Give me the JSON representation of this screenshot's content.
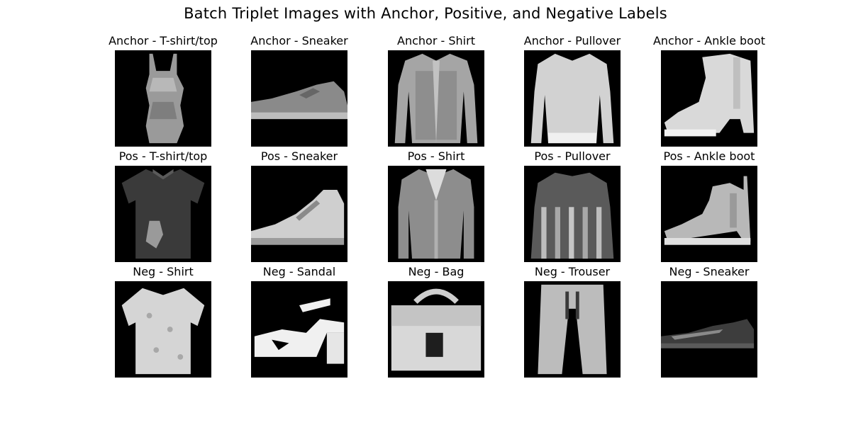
{
  "figure": {
    "title": "Batch Triplet Images with Anchor, Positive, and Negative Labels",
    "rows": [
      {
        "role": "anchor",
        "cells": [
          {
            "title": "Anchor - T-shirt/top",
            "icon": "dress-silhouette"
          },
          {
            "title": "Anchor - Sneaker",
            "icon": "low-sneaker-silhouette"
          },
          {
            "title": "Anchor - Shirt",
            "icon": "long-sleeve-shirt-silhouette"
          },
          {
            "title": "Anchor - Pullover",
            "icon": "pullover-silhouette"
          },
          {
            "title": "Anchor - Ankle boot",
            "icon": "ankle-boot-silhouette"
          }
        ]
      },
      {
        "role": "positive",
        "cells": [
          {
            "title": "Pos - T-shirt/top",
            "icon": "dark-tshirt-silhouette"
          },
          {
            "title": "Pos - Sneaker",
            "icon": "high-top-sneaker-silhouette"
          },
          {
            "title": "Pos - Shirt",
            "icon": "cardigan-silhouette"
          },
          {
            "title": "Pos - Pullover",
            "icon": "striped-pullover-silhouette"
          },
          {
            "title": "Pos - Ankle boot",
            "icon": "chelsea-boot-silhouette"
          }
        ]
      },
      {
        "role": "negative",
        "cells": [
          {
            "title": "Neg - Shirt",
            "icon": "short-sleeve-shirt-silhouette"
          },
          {
            "title": "Neg - Sandal",
            "icon": "high-heel-sandal-silhouette"
          },
          {
            "title": "Neg - Bag",
            "icon": "handbag-silhouette"
          },
          {
            "title": "Neg - Trouser",
            "icon": "trouser-silhouette"
          },
          {
            "title": "Neg - Sneaker",
            "icon": "dark-sneaker-silhouette"
          }
        ]
      }
    ]
  }
}
